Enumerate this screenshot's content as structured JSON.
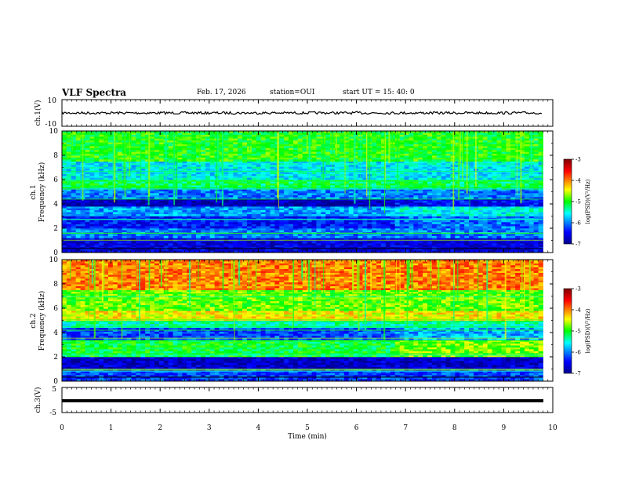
{
  "header": {
    "title": "VLF Spectra",
    "date": "Feb. 17, 2026",
    "station": "station=OUI",
    "start": "start  UT =  15: 40: 0"
  },
  "chart_data": [
    {
      "type": "line",
      "panel": "ch1-waveform",
      "ylabel": "ch.1(V)",
      "ylim": [
        -10,
        10
      ],
      "yticks": [
        "10",
        "-10"
      ],
      "series": [
        {
          "values_approx_level": 0
        }
      ],
      "xlim": [
        0,
        10
      ]
    },
    {
      "type": "heatmap",
      "panel": "ch1-spectrogram",
      "ylabel": "ch.1\nFrequency (kHz)",
      "ylabel_lines": [
        "ch.1",
        "Frequency (kHz)"
      ],
      "ylim": [
        0,
        10
      ],
      "yticks": [
        "0",
        "2",
        "4",
        "6",
        "8",
        "10"
      ],
      "xlim": [
        0,
        10
      ],
      "data_end_min": 9.8,
      "bands_khz": [
        {
          "from": 0,
          "to": 1.2,
          "level": -6.6
        },
        {
          "from": 1.2,
          "to": 2.0,
          "level": -6.0
        },
        {
          "from": 2.0,
          "to": 3.0,
          "level": -6.4
        },
        {
          "from": 3.0,
          "to": 3.8,
          "level": -5.9
        },
        {
          "from": 3.8,
          "to": 4.4,
          "level": -6.8
        },
        {
          "from": 4.4,
          "to": 5.2,
          "level": -6.0
        },
        {
          "from": 5.2,
          "to": 6.0,
          "level": -5.2
        },
        {
          "from": 6.0,
          "to": 7.5,
          "level": -5.6
        },
        {
          "from": 7.5,
          "to": 10,
          "level": -5.0
        }
      ],
      "colorbar": {
        "label": "log(PSD)(V²/Hz)",
        "range": [
          -7,
          -3
        ],
        "ticks": [
          "-3",
          "-4",
          "-5",
          "-6",
          "-7"
        ]
      }
    },
    {
      "type": "heatmap",
      "panel": "ch2-spectrogram",
      "ylabel": "ch.2\nFrequency (kHz)",
      "ylabel_lines": [
        "ch.2",
        "Frequency (kHz)"
      ],
      "ylim": [
        0,
        10
      ],
      "yticks": [
        "0",
        "2",
        "4",
        "6",
        "8",
        "10"
      ],
      "xlim": [
        0,
        10
      ],
      "data_end_min": 9.8,
      "bands_khz": [
        {
          "from": 0,
          "to": 1.0,
          "level": -6.2
        },
        {
          "from": 1.0,
          "to": 2.0,
          "level": -6.7
        },
        {
          "from": 2.0,
          "to": 3.4,
          "level": -5.1
        },
        {
          "from": 3.4,
          "to": 4.4,
          "level": -6.2
        },
        {
          "from": 4.4,
          "to": 5.0,
          "level": -5.4
        },
        {
          "from": 5.0,
          "to": 5.8,
          "level": -4.4
        },
        {
          "from": 5.8,
          "to": 7.5,
          "level": -4.8
        },
        {
          "from": 7.5,
          "to": 10,
          "level": -4.0
        }
      ],
      "colorbar": {
        "label": "log(PSD)(V²/Hz)",
        "range": [
          -7,
          -3
        ],
        "ticks": [
          "-3",
          "-4",
          "-5",
          "-6",
          "-7"
        ]
      }
    },
    {
      "type": "line",
      "panel": "ch3-waveform",
      "ylabel": "ch.3(V)",
      "ylim": [
        -5,
        5
      ],
      "yticks": [
        "5",
        "-5"
      ],
      "series": [
        {
          "values_approx_level": 0
        }
      ],
      "xlim": [
        0,
        10
      ]
    }
  ],
  "xaxis": {
    "label": "Time (min)",
    "ticks": [
      "0",
      "1",
      "2",
      "3",
      "4",
      "5",
      "6",
      "7",
      "8",
      "9",
      "10"
    ]
  },
  "colors": {
    "colormap": [
      "#00008f",
      "#0000ff",
      "#00ffff",
      "#00ff00",
      "#ffff00",
      "#ff7f00",
      "#ff0000",
      "#800000"
    ],
    "trace": "#000000",
    "background": "#ffffff"
  }
}
